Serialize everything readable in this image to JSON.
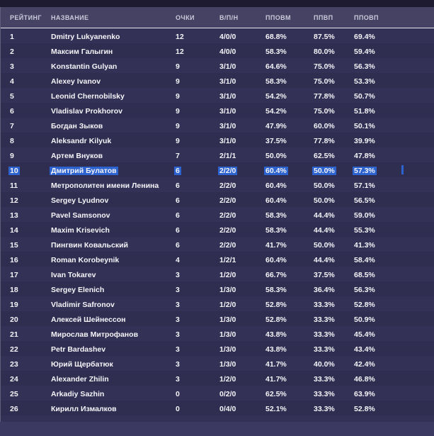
{
  "colors": {
    "selection_blue": "#2c63cf",
    "background": "#343156",
    "header_band": "#454263",
    "top_strip": "#1e1b30"
  },
  "table": {
    "headers": [
      {
        "id": "rank",
        "label": "РЕЙТИНГ"
      },
      {
        "id": "name",
        "label": "НАЗВАНИЕ"
      },
      {
        "id": "points",
        "label": "ОЧКИ"
      },
      {
        "id": "wdl",
        "label": "В/П/Н"
      },
      {
        "id": "ppovm",
        "label": "ППОВМ"
      },
      {
        "id": "ppvp",
        "label": "ППВП"
      },
      {
        "id": "ppovp",
        "label": "ППОВП"
      }
    ],
    "rows": [
      {
        "rank": "1",
        "name": "Dmitry Lukyanenko",
        "points": "12",
        "wdl": "4/0/0",
        "ppovm": "68.8%",
        "ppvp": "87.5%",
        "ppovp": "69.4%",
        "selected": false
      },
      {
        "rank": "2",
        "name": "Максим Галыгин",
        "points": "12",
        "wdl": "4/0/0",
        "ppovm": "58.3%",
        "ppvp": "80.0%",
        "ppovp": "59.4%",
        "selected": false
      },
      {
        "rank": "3",
        "name": "Konstantin Gulyan",
        "points": "9",
        "wdl": "3/1/0",
        "ppovm": "64.6%",
        "ppvp": "75.0%",
        "ppovp": "56.3%",
        "selected": false
      },
      {
        "rank": "4",
        "name": "Alexey Ivanov",
        "points": "9",
        "wdl": "3/1/0",
        "ppovm": "58.3%",
        "ppvp": "75.0%",
        "ppovp": "53.3%",
        "selected": false
      },
      {
        "rank": "5",
        "name": "Leonid Chernobilsky",
        "points": "9",
        "wdl": "3/1/0",
        "ppovm": "54.2%",
        "ppvp": "77.8%",
        "ppovp": "50.7%",
        "selected": false
      },
      {
        "rank": "6",
        "name": "Vladislav Prokhorov",
        "points": "9",
        "wdl": "3/1/0",
        "ppovm": "54.2%",
        "ppvp": "75.0%",
        "ppovp": "51.8%",
        "selected": false
      },
      {
        "rank": "7",
        "name": "Богдан Зыков",
        "points": "9",
        "wdl": "3/1/0",
        "ppovm": "47.9%",
        "ppvp": "60.0%",
        "ppovp": "50.1%",
        "selected": false
      },
      {
        "rank": "8",
        "name": "Aleksandr Kilyuk",
        "points": "9",
        "wdl": "3/1/0",
        "ppovm": "37.5%",
        "ppvp": "77.8%",
        "ppovp": "39.9%",
        "selected": false
      },
      {
        "rank": "9",
        "name": "Артем Внуков",
        "points": "7",
        "wdl": "2/1/1",
        "ppovm": "50.0%",
        "ppvp": "62.5%",
        "ppovp": "47.8%",
        "selected": false
      },
      {
        "rank": "10",
        "name": "Дмитрий Булатов",
        "points": "6",
        "wdl": "2/2/0",
        "ppovm": "60.4%",
        "ppvp": "50.0%",
        "ppovp": "57.3%",
        "selected": true
      },
      {
        "rank": "11",
        "name": "Метрополитен имени Ленина",
        "points": "6",
        "wdl": "2/2/0",
        "ppovm": "60.4%",
        "ppvp": "50.0%",
        "ppovp": "57.1%",
        "selected": false
      },
      {
        "rank": "12",
        "name": "Sergey Lyudnov",
        "points": "6",
        "wdl": "2/2/0",
        "ppovm": "60.4%",
        "ppvp": "50.0%",
        "ppovp": "56.5%",
        "selected": false
      },
      {
        "rank": "13",
        "name": "Pavel Samsonov",
        "points": "6",
        "wdl": "2/2/0",
        "ppovm": "58.3%",
        "ppvp": "44.4%",
        "ppovp": "59.0%",
        "selected": false
      },
      {
        "rank": "14",
        "name": "Maxim Krisevich",
        "points": "6",
        "wdl": "2/2/0",
        "ppovm": "58.3%",
        "ppvp": "44.4%",
        "ppovp": "55.3%",
        "selected": false
      },
      {
        "rank": "15",
        "name": "Пингвин Ковальский",
        "points": "6",
        "wdl": "2/2/0",
        "ppovm": "41.7%",
        "ppvp": "50.0%",
        "ppovp": "41.3%",
        "selected": false
      },
      {
        "rank": "16",
        "name": "Roman Korobeynik",
        "points": "4",
        "wdl": "1/2/1",
        "ppovm": "60.4%",
        "ppvp": "44.4%",
        "ppovp": "58.4%",
        "selected": false
      },
      {
        "rank": "17",
        "name": "Ivan Tokarev",
        "points": "3",
        "wdl": "1/2/0",
        "ppovm": "66.7%",
        "ppvp": "37.5%",
        "ppovp": "68.5%",
        "selected": false
      },
      {
        "rank": "18",
        "name": "Sergey Elenich",
        "points": "3",
        "wdl": "1/3/0",
        "ppovm": "58.3%",
        "ppvp": "36.4%",
        "ppovp": "56.3%",
        "selected": false
      },
      {
        "rank": "19",
        "name": "Vladimir Safronov",
        "points": "3",
        "wdl": "1/2/0",
        "ppovm": "52.8%",
        "ppvp": "33.3%",
        "ppovp": "52.8%",
        "selected": false
      },
      {
        "rank": "20",
        "name": "Алексей Шейнессон",
        "points": "3",
        "wdl": "1/3/0",
        "ppovm": "52.8%",
        "ppvp": "33.3%",
        "ppovp": "50.9%",
        "selected": false
      },
      {
        "rank": "21",
        "name": "Мирослав Митрофанов",
        "points": "3",
        "wdl": "1/3/0",
        "ppovm": "43.8%",
        "ppvp": "33.3%",
        "ppovp": "45.4%",
        "selected": false
      },
      {
        "rank": "22",
        "name": "Petr Bardashev",
        "points": "3",
        "wdl": "1/3/0",
        "ppovm": "43.8%",
        "ppvp": "33.3%",
        "ppovp": "43.4%",
        "selected": false
      },
      {
        "rank": "23",
        "name": "Юрий Щербатюк",
        "points": "3",
        "wdl": "1/3/0",
        "ppovm": "41.7%",
        "ppvp": "40.0%",
        "ppovp": "42.4%",
        "selected": false
      },
      {
        "rank": "24",
        "name": "Alexander Zhilin",
        "points": "3",
        "wdl": "1/2/0",
        "ppovm": "41.7%",
        "ppvp": "33.3%",
        "ppovp": "46.8%",
        "selected": false
      },
      {
        "rank": "25",
        "name": "Arkadiy Sazhin",
        "points": "0",
        "wdl": "0/2/0",
        "ppovm": "62.5%",
        "ppvp": "33.3%",
        "ppovp": "63.9%",
        "selected": false
      },
      {
        "rank": "26",
        "name": "Кирилл Измалков",
        "points": "0",
        "wdl": "0/4/0",
        "ppovm": "52.1%",
        "ppvp": "33.3%",
        "ppovp": "52.8%",
        "selected": false
      }
    ]
  }
}
